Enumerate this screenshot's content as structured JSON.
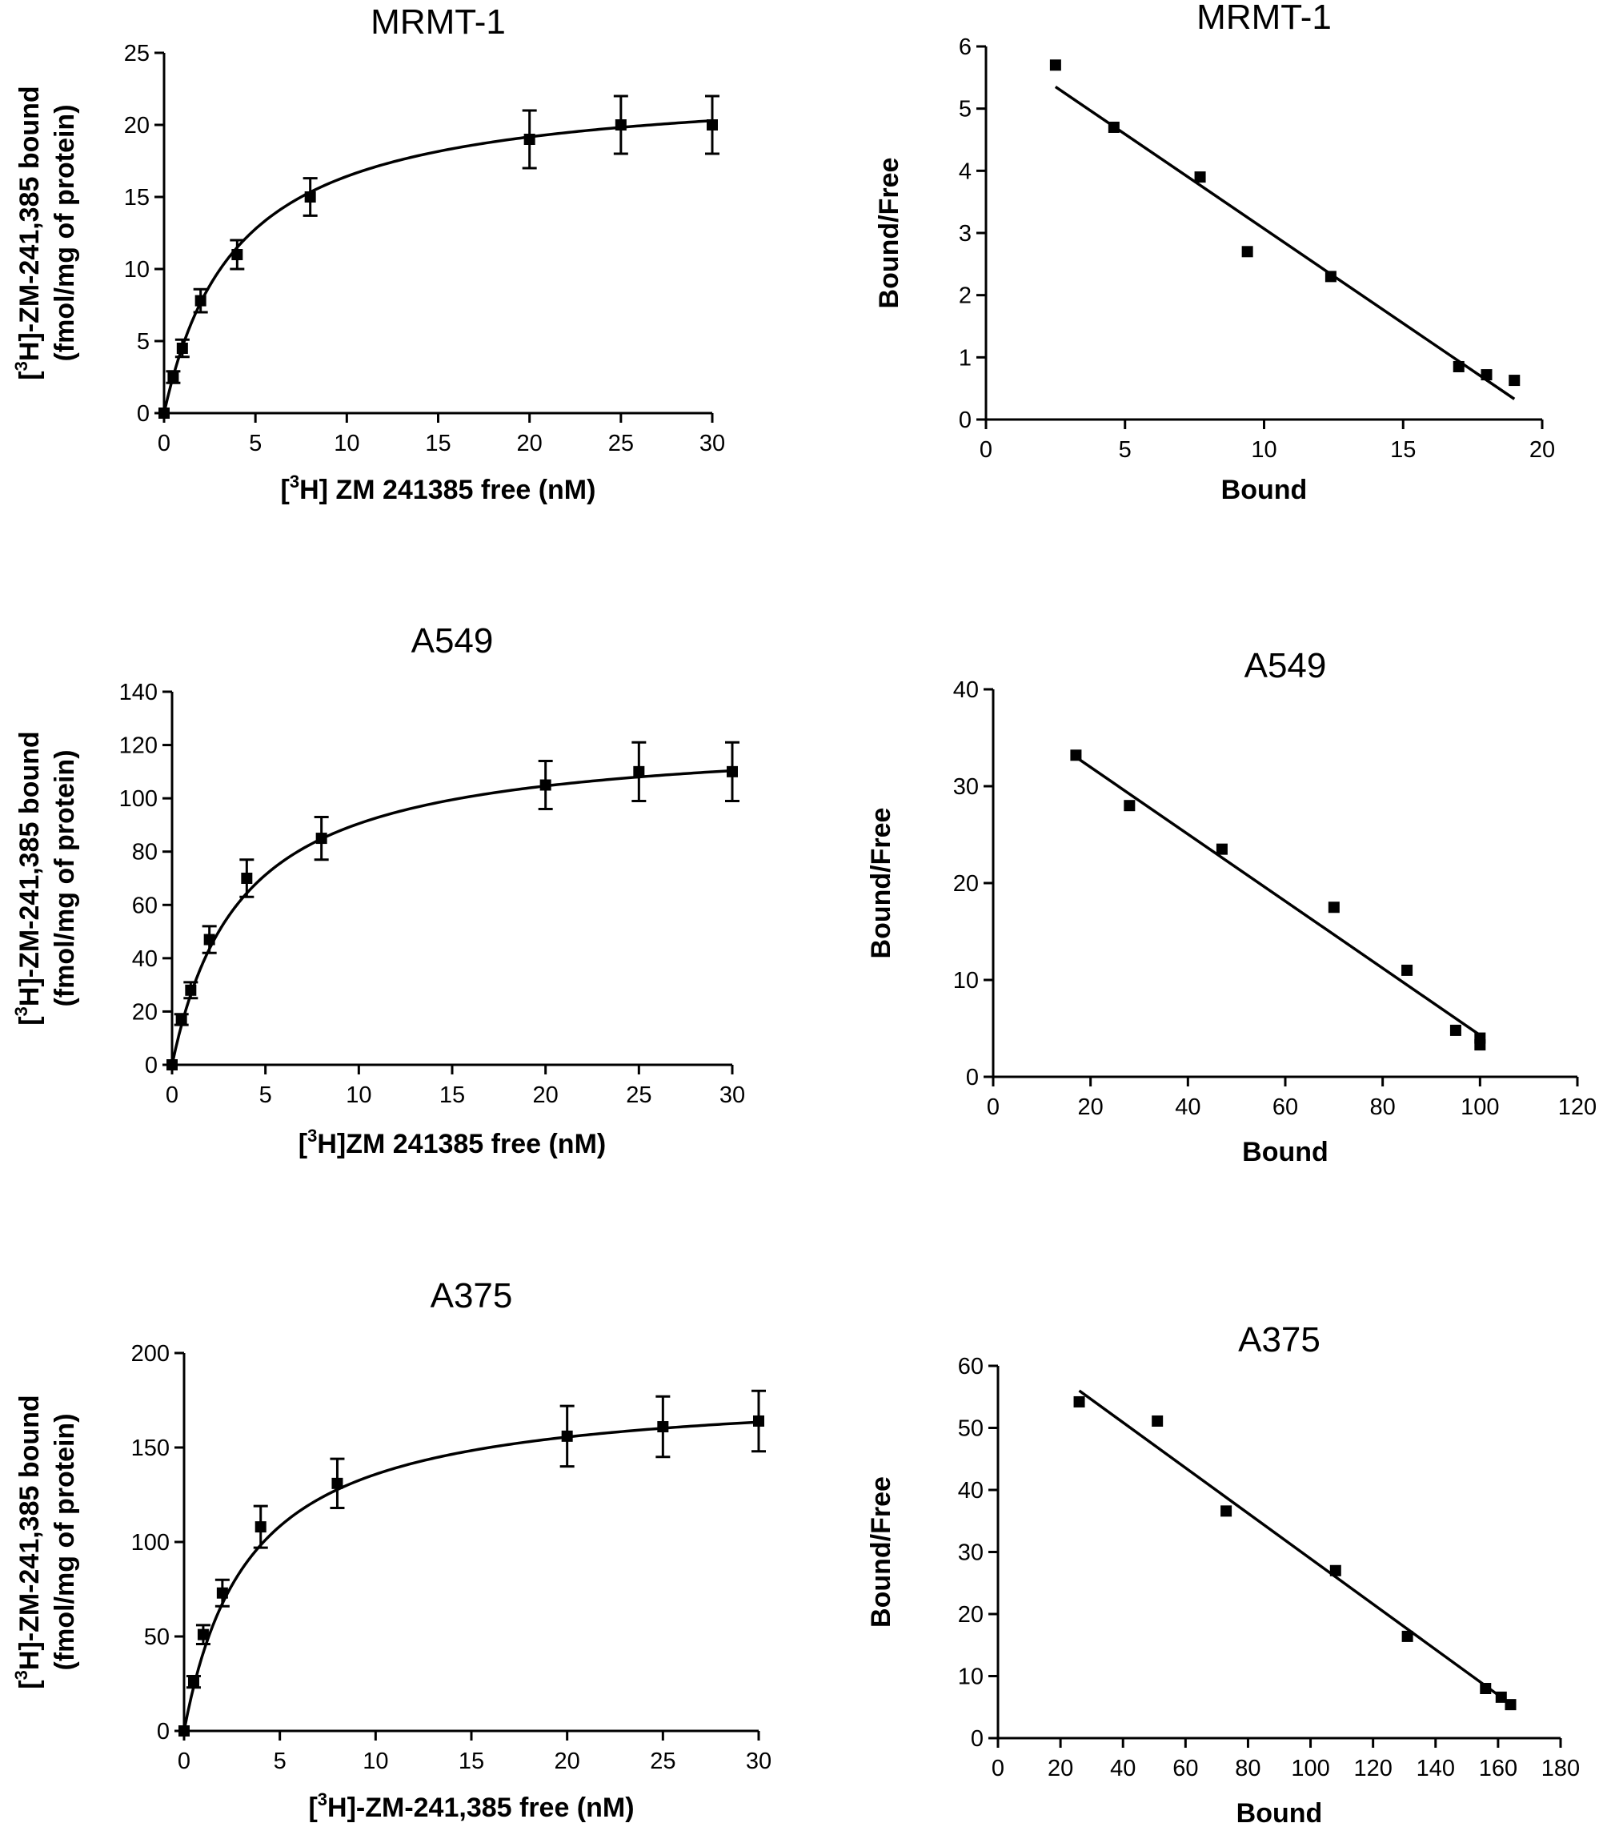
{
  "colors": {
    "ink": "#000000",
    "background": "#ffffff"
  },
  "chart_data": [
    {
      "type": "line",
      "subtype": "saturation-curve-with-error-bars",
      "title": "MRMT-1",
      "xlabel_pre": "[",
      "xlabel_sup": "3",
      "xlabel_post": "H] ZM 241385 free (nM)",
      "ylabel_line1_pre": "[",
      "ylabel_line1_sup": "3",
      "ylabel_line1_post": "H]-ZM-241,385 bound",
      "ylabel_line2": "(fmol/mg of protein)",
      "xlim": [
        0,
        30
      ],
      "ylim": [
        0,
        25
      ],
      "xticks": [
        0,
        5,
        10,
        15,
        20,
        25,
        30
      ],
      "yticks": [
        0,
        5,
        10,
        15,
        20,
        25
      ],
      "points": [
        {
          "x": 0,
          "y": 0,
          "err": 0
        },
        {
          "x": 0.5,
          "y": 2.5,
          "err": 0.4
        },
        {
          "x": 1,
          "y": 4.5,
          "err": 0.6
        },
        {
          "x": 2,
          "y": 7.8,
          "err": 0.8
        },
        {
          "x": 4,
          "y": 11,
          "err": 1.0
        },
        {
          "x": 8,
          "y": 15,
          "err": 1.3
        },
        {
          "x": 20,
          "y": 19,
          "err": 2.0
        },
        {
          "x": 25,
          "y": 20,
          "err": 2.0
        },
        {
          "x": 30,
          "y": 20,
          "err": 2.0
        }
      ],
      "fit": {
        "model": "one-site",
        "bmax": 23.0,
        "kd": 4.0
      }
    },
    {
      "type": "scatter",
      "subtype": "scatchard-with-linear-fit",
      "title": "MRMT-1",
      "xlabel": "Bound",
      "ylabel": "Bound/Free",
      "xlim": [
        0,
        20
      ],
      "ylim": [
        0,
        6
      ],
      "xticks": [
        0,
        5,
        10,
        15,
        20
      ],
      "yticks": [
        0,
        1,
        2,
        3,
        4,
        5,
        6
      ],
      "points": [
        {
          "x": 2.5,
          "y": 5.7
        },
        {
          "x": 4.6,
          "y": 4.7
        },
        {
          "x": 7.7,
          "y": 3.9
        },
        {
          "x": 9.4,
          "y": 2.7
        },
        {
          "x": 12.4,
          "y": 2.3
        },
        {
          "x": 17.0,
          "y": 0.85
        },
        {
          "x": 18.0,
          "y": 0.72
        },
        {
          "x": 19.0,
          "y": 0.63
        }
      ],
      "fit_line": {
        "x1": 2.5,
        "y1": 5.35,
        "x2": 19.0,
        "y2": 0.33
      }
    },
    {
      "type": "line",
      "subtype": "saturation-curve-with-error-bars",
      "title": "A549",
      "xlabel_pre": "[",
      "xlabel_sup": "3",
      "xlabel_post": "H]ZM 241385 free (nM)",
      "ylabel_line1_pre": "[",
      "ylabel_line1_sup": "3",
      "ylabel_line1_post": "H]-ZM-241,385 bound",
      "ylabel_line2": "(fmol/mg of protein)",
      "xlim": [
        0,
        30
      ],
      "ylim": [
        0,
        140
      ],
      "xticks": [
        0,
        5,
        10,
        15,
        20,
        25,
        30
      ],
      "yticks": [
        0,
        20,
        40,
        60,
        80,
        100,
        120,
        140
      ],
      "points": [
        {
          "x": 0,
          "y": 0,
          "err": 0
        },
        {
          "x": 0.5,
          "y": 17,
          "err": 2
        },
        {
          "x": 1,
          "y": 28,
          "err": 3
        },
        {
          "x": 2,
          "y": 47,
          "err": 5
        },
        {
          "x": 4,
          "y": 70,
          "err": 7
        },
        {
          "x": 8,
          "y": 85,
          "err": 8
        },
        {
          "x": 20,
          "y": 105,
          "err": 9
        },
        {
          "x": 25,
          "y": 110,
          "err": 11
        },
        {
          "x": 30,
          "y": 110,
          "err": 11
        }
      ],
      "fit": {
        "model": "one-site",
        "bmax": 124.0,
        "kd": 3.7
      }
    },
    {
      "type": "scatter",
      "subtype": "scatchard-with-linear-fit",
      "title": "A549",
      "xlabel": "Bound",
      "ylabel": "Bound/Free",
      "xlim": [
        0,
        120
      ],
      "ylim": [
        0,
        40
      ],
      "xticks": [
        0,
        20,
        40,
        60,
        80,
        100,
        120
      ],
      "yticks": [
        0,
        10,
        20,
        30,
        40
      ],
      "points": [
        {
          "x": 17,
          "y": 33.2
        },
        {
          "x": 28,
          "y": 28.0
        },
        {
          "x": 47,
          "y": 23.5
        },
        {
          "x": 70,
          "y": 17.5
        },
        {
          "x": 85,
          "y": 11.0
        },
        {
          "x": 95,
          "y": 4.8
        },
        {
          "x": 100,
          "y": 4.0
        },
        {
          "x": 100,
          "y": 3.3
        }
      ],
      "fit_line": {
        "x1": 17,
        "y1": 33.0,
        "x2": 100,
        "y2": 4.3
      }
    },
    {
      "type": "line",
      "subtype": "saturation-curve-with-error-bars",
      "title": "A375",
      "xlabel_pre": "[",
      "xlabel_sup": "3",
      "xlabel_post": "H]-ZM-241,385 free (nM)",
      "ylabel_line1_pre": "[",
      "ylabel_line1_sup": "3",
      "ylabel_line1_post": "H]-ZM-241,385 bound",
      "ylabel_line2": "(fmol/mg of protein)",
      "xlim": [
        0,
        30
      ],
      "ylim": [
        0,
        200
      ],
      "xticks": [
        0,
        5,
        10,
        15,
        20,
        25,
        30
      ],
      "yticks": [
        0,
        50,
        100,
        150,
        200
      ],
      "points": [
        {
          "x": 0,
          "y": 0,
          "err": 0
        },
        {
          "x": 0.5,
          "y": 26,
          "err": 3
        },
        {
          "x": 1,
          "y": 51,
          "err": 5
        },
        {
          "x": 2,
          "y": 73,
          "err": 7
        },
        {
          "x": 4,
          "y": 108,
          "err": 11
        },
        {
          "x": 8,
          "y": 131,
          "err": 13
        },
        {
          "x": 20,
          "y": 156,
          "err": 16
        },
        {
          "x": 25,
          "y": 161,
          "err": 16
        },
        {
          "x": 30,
          "y": 164,
          "err": 16
        }
      ],
      "fit": {
        "model": "one-site",
        "bmax": 182.0,
        "kd": 3.4
      }
    },
    {
      "type": "scatter",
      "subtype": "scatchard-with-linear-fit",
      "title": "A375",
      "xlabel": "Bound",
      "ylabel": "Bound/Free",
      "xlim": [
        0,
        180
      ],
      "ylim": [
        0,
        60
      ],
      "xticks": [
        0,
        20,
        40,
        60,
        80,
        100,
        120,
        140,
        160,
        180
      ],
      "yticks": [
        0,
        10,
        20,
        30,
        40,
        50,
        60
      ],
      "points": [
        {
          "x": 26,
          "y": 54.2
        },
        {
          "x": 51,
          "y": 51.1
        },
        {
          "x": 73,
          "y": 36.6
        },
        {
          "x": 108,
          "y": 27.0
        },
        {
          "x": 131,
          "y": 16.4
        },
        {
          "x": 156,
          "y": 8.0
        },
        {
          "x": 161,
          "y": 6.6
        },
        {
          "x": 164,
          "y": 5.4
        }
      ],
      "fit_line": {
        "x1": 26,
        "y1": 56.0,
        "x2": 164,
        "y2": 5.5
      }
    }
  ]
}
